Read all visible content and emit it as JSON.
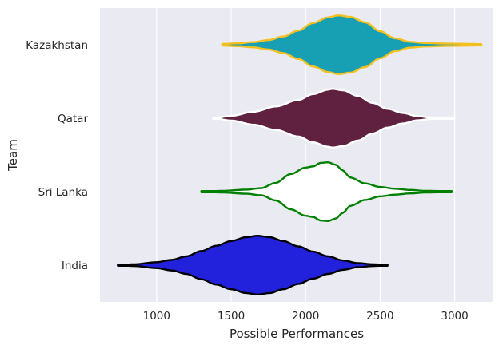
{
  "chart_data": {
    "type": "violin",
    "orientation": "horizontal",
    "xlabel": "Possible Performances",
    "ylabel": "Team",
    "xlim": [
      620,
      3260
    ],
    "xticks": [
      1000,
      1500,
      2000,
      2500,
      3000
    ],
    "grid": true,
    "background": "#EAEAF2",
    "gridColor": "#FFFFFF",
    "categories": [
      "Kazakhstan",
      "Qatar",
      "Sri Lanka",
      "India"
    ],
    "series": [
      {
        "name": "Kazakhstan",
        "fill": "#17A0B4",
        "edge": "#F4C020",
        "min": 1440,
        "max": 3180,
        "profile": [
          [
            1440,
            0.03
          ],
          [
            1550,
            0.05
          ],
          [
            1650,
            0.09
          ],
          [
            1750,
            0.16
          ],
          [
            1850,
            0.28
          ],
          [
            1950,
            0.48
          ],
          [
            2050,
            0.74
          ],
          [
            2150,
            0.93
          ],
          [
            2220,
            1.0
          ],
          [
            2300,
            0.95
          ],
          [
            2400,
            0.76
          ],
          [
            2500,
            0.46
          ],
          [
            2600,
            0.22
          ],
          [
            2700,
            0.1
          ],
          [
            2800,
            0.06
          ],
          [
            2950,
            0.04
          ],
          [
            3100,
            0.03
          ],
          [
            3180,
            0.02
          ]
        ]
      },
      {
        "name": "Qatar",
        "fill": "#602040",
        "edge": "#FFFFFF",
        "min": 1380,
        "max": 3000,
        "profile": [
          [
            1380,
            0.0
          ],
          [
            1500,
            0.08
          ],
          [
            1650,
            0.22
          ],
          [
            1800,
            0.4
          ],
          [
            1950,
            0.62
          ],
          [
            2050,
            0.82
          ],
          [
            2150,
            0.97
          ],
          [
            2180,
            1.0
          ],
          [
            2250,
            0.95
          ],
          [
            2350,
            0.76
          ],
          [
            2450,
            0.52
          ],
          [
            2550,
            0.32
          ],
          [
            2650,
            0.18
          ],
          [
            2750,
            0.07
          ],
          [
            2850,
            0.02
          ],
          [
            3000,
            0.01
          ]
        ]
      },
      {
        "name": "Sri Lanka",
        "fill": "#FFFFFF",
        "edge": "#008000",
        "min": 1300,
        "max": 2980,
        "profile": [
          [
            1300,
            0.0
          ],
          [
            1450,
            0.03
          ],
          [
            1600,
            0.07
          ],
          [
            1700,
            0.12
          ],
          [
            1800,
            0.3
          ],
          [
            1900,
            0.6
          ],
          [
            2000,
            0.82
          ],
          [
            2050,
            0.86
          ],
          [
            2100,
            0.98
          ],
          [
            2150,
            1.0
          ],
          [
            2200,
            0.92
          ],
          [
            2250,
            0.72
          ],
          [
            2300,
            0.48
          ],
          [
            2400,
            0.28
          ],
          [
            2500,
            0.16
          ],
          [
            2600,
            0.1
          ],
          [
            2700,
            0.06
          ],
          [
            2800,
            0.03
          ],
          [
            2980,
            0.01
          ]
        ]
      },
      {
        "name": "India",
        "fill": "#2222DD",
        "edge": "#000000",
        "min": 740,
        "max": 2550,
        "profile": [
          [
            740,
            0.0
          ],
          [
            850,
            0.03
          ],
          [
            1000,
            0.1
          ],
          [
            1100,
            0.18
          ],
          [
            1200,
            0.3
          ],
          [
            1300,
            0.48
          ],
          [
            1400,
            0.66
          ],
          [
            1500,
            0.82
          ],
          [
            1600,
            0.95
          ],
          [
            1680,
            1.0
          ],
          [
            1760,
            0.95
          ],
          [
            1850,
            0.82
          ],
          [
            1950,
            0.64
          ],
          [
            2050,
            0.46
          ],
          [
            2150,
            0.3
          ],
          [
            2250,
            0.16
          ],
          [
            2350,
            0.07
          ],
          [
            2450,
            0.03
          ],
          [
            2550,
            0.0
          ]
        ]
      }
    ]
  }
}
